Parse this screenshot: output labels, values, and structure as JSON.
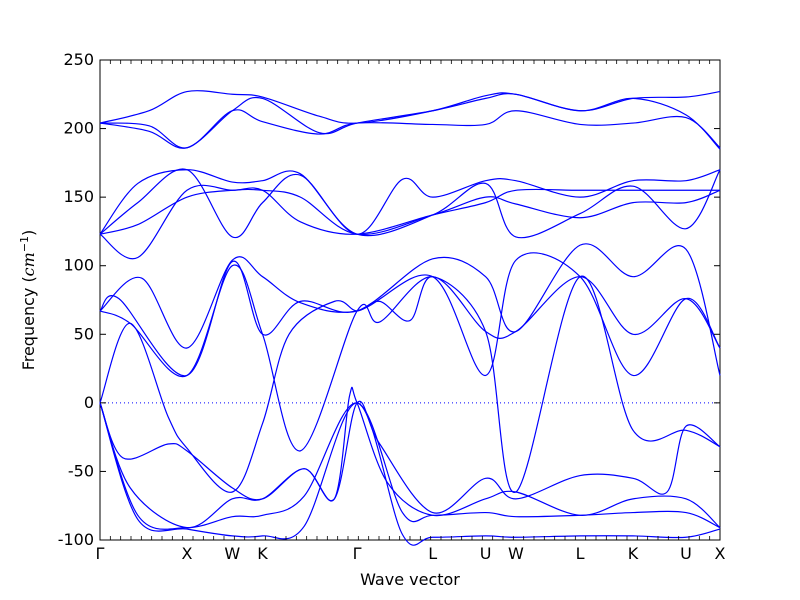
{
  "chart_data": {
    "type": "line",
    "title": "",
    "xlabel": "Wave vector",
    "ylabel": {
      "prefix": "Frequency (",
      "unit_base": "cm",
      "unit_exponent": "−1",
      "suffix": ")"
    },
    "ylim": [
      -100,
      250
    ],
    "xlim": [
      0,
      16.4
    ],
    "y_ticks": [
      -100,
      -50,
      0,
      50,
      100,
      150,
      200,
      250
    ],
    "x_ticks": [
      {
        "label": "Γ",
        "x": 0.0
      },
      {
        "label": "X",
        "x": 2.3
      },
      {
        "label": "W",
        "x": 3.5
      },
      {
        "label": "K",
        "x": 4.3
      },
      {
        "label": "Γ",
        "x": 6.8
      },
      {
        "label": "L",
        "x": 8.8
      },
      {
        "label": "U",
        "x": 10.2
      },
      {
        "label": "W",
        "x": 11.0
      },
      {
        "label": "L",
        "x": 12.7
      },
      {
        "label": "K",
        "x": 14.1
      },
      {
        "label": "U",
        "x": 15.5
      },
      {
        "label": "X",
        "x": 16.4
      }
    ],
    "zero_line": {
      "y": 0,
      "style": "dotted"
    },
    "grid": false,
    "legend": "none",
    "line_color": "#0000ff",
    "series": [
      {
        "x": [
          0.0,
          1.3,
          2.3,
          3.5,
          4.3,
          5.8,
          6.8,
          8.8,
          10.2,
          11.0,
          12.7,
          14.1,
          15.5,
          16.4
        ],
        "y": [
          204,
          213,
          227,
          225,
          223,
          209,
          204,
          213,
          224,
          225,
          213,
          222,
          223,
          227
        ]
      },
      {
        "x": [
          0.0,
          1.3,
          2.3,
          3.5,
          4.3,
          5.8,
          6.8,
          8.8,
          10.2,
          11.0,
          12.7,
          14.1,
          15.5,
          16.4
        ],
        "y": [
          204,
          198,
          186,
          213,
          222,
          197,
          204,
          213,
          222,
          225,
          213,
          222,
          210,
          185
        ]
      },
      {
        "x": [
          0.0,
          1.3,
          2.3,
          3.5,
          4.3,
          5.8,
          6.8,
          8.8,
          10.2,
          11.0,
          12.7,
          14.1,
          15.5,
          16.4
        ],
        "y": [
          204,
          202,
          186,
          213,
          205,
          196,
          204,
          203,
          203,
          213,
          203,
          204,
          208,
          186
        ]
      },
      {
        "x": [
          0.0,
          1.0,
          2.3,
          3.5,
          4.3,
          5.3,
          6.8,
          8.0,
          8.8,
          10.2,
          11.0,
          12.7,
          14.1,
          15.5,
          16.4
        ],
        "y": [
          123,
          160,
          170,
          161,
          162,
          167,
          123,
          163,
          150,
          162,
          162,
          150,
          162,
          162,
          170
        ]
      },
      {
        "x": [
          0.0,
          1.0,
          2.3,
          3.5,
          4.3,
          5.3,
          6.8,
          8.8,
          10.2,
          11.0,
          12.7,
          14.1,
          15.5,
          16.4
        ],
        "y": [
          123,
          146,
          170,
          121,
          146,
          166,
          123,
          137,
          160,
          121,
          138,
          158,
          127,
          170
        ]
      },
      {
        "x": [
          0.0,
          1.0,
          2.3,
          3.5,
          4.3,
          5.3,
          6.8,
          8.8,
          10.2,
          11.0,
          12.7,
          14.1,
          15.5,
          16.4
        ],
        "y": [
          123,
          106,
          155,
          155,
          155,
          132,
          123,
          137,
          146,
          155,
          155,
          155,
          155,
          155
        ]
      },
      {
        "x": [
          0.0,
          1.0,
          2.3,
          3.5,
          4.3,
          5.3,
          6.8,
          8.8,
          10.2,
          11.0,
          12.7,
          14.1,
          15.5,
          16.4
        ],
        "y": [
          123,
          130,
          150,
          155,
          155,
          150,
          123,
          137,
          150,
          145,
          135,
          146,
          146,
          155
        ]
      },
      {
        "x": [
          0.0,
          1.1,
          2.3,
          3.5,
          4.3,
          5.3,
          6.8,
          8.8,
          10.2,
          11.0,
          12.7,
          14.1,
          15.5,
          16.4
        ],
        "y": [
          67,
          91,
          40,
          104,
          92,
          73,
          67,
          92,
          20,
          104,
          92,
          20,
          76,
          40
        ]
      },
      {
        "x": [
          0.0,
          0.5,
          2.3,
          3.5,
          4.3,
          5.3,
          6.8,
          8.8,
          10.2,
          11.0,
          12.7,
          14.1,
          15.5,
          16.4
        ],
        "y": [
          67,
          76,
          20,
          103,
          50,
          74,
          67,
          105,
          92,
          52,
          115,
          92,
          112,
          20
        ]
      },
      {
        "x": [
          0.0,
          0.8,
          2.3,
          3.5,
          4.3,
          5.3,
          6.8,
          7.4,
          8.8,
          10.2,
          11.0,
          12.7,
          14.1,
          15.5,
          16.4
        ],
        "y": [
          67,
          58,
          20,
          100,
          50,
          -35,
          67,
          59,
          92,
          52,
          52,
          92,
          50,
          76,
          40
        ]
      },
      {
        "x": [
          0.0,
          0.8,
          1.8,
          2.3,
          3.5,
          4.3,
          5.0,
          6.2,
          6.8,
          7.4,
          8.2,
          8.8,
          10.2,
          11.0,
          12.7,
          14.1,
          15.5,
          16.4
        ],
        "y": [
          0,
          58,
          -10,
          -33,
          -65,
          -15,
          50,
          74,
          67,
          74,
          60,
          92,
          52,
          -65,
          92,
          -20,
          -20,
          -32
        ]
      },
      {
        "x": [
          0.0,
          0.6,
          1.8,
          2.3,
          3.5,
          4.3,
          5.4,
          6.2,
          6.8,
          7.4,
          8.8,
          10.2,
          11.0,
          12.7,
          14.1,
          15.0,
          15.5,
          16.4
        ],
        "y": [
          0,
          -40,
          -30,
          -35,
          -62,
          -70,
          -48,
          -70,
          0,
          -30,
          -80,
          -55,
          -70,
          -53,
          -55,
          -65,
          -17,
          -32
        ]
      },
      {
        "x": [
          0.0,
          0.8,
          2.3,
          3.5,
          4.3,
          5.4,
          6.2,
          6.6,
          6.8,
          7.6,
          8.8,
          10.2,
          11.0,
          12.7,
          14.1,
          15.5,
          16.4
        ],
        "y": [
          0,
          -62,
          -91,
          -70,
          -70,
          -48,
          -70,
          5,
          0,
          -58,
          -82,
          -70,
          -65,
          -82,
          -70,
          -70,
          -91
        ]
      },
      {
        "x": [
          0.0,
          1.0,
          2.3,
          3.5,
          4.3,
          5.4,
          6.8,
          8.0,
          8.8,
          10.2,
          11.0,
          12.7,
          14.1,
          15.5,
          16.4
        ],
        "y": [
          0,
          -82,
          -91,
          -83,
          -82,
          -68,
          0,
          -80,
          -82,
          -80,
          -83,
          -82,
          -80,
          -80,
          -91
        ]
      },
      {
        "x": [
          0.0,
          1.0,
          2.3,
          3.5,
          4.3,
          5.4,
          6.8,
          8.0,
          8.8,
          10.2,
          11.0,
          12.7,
          14.1,
          15.5,
          16.4
        ],
        "y": [
          0,
          -85,
          -92,
          -97,
          -97,
          -90,
          0,
          -96,
          -98,
          -97,
          -98,
          -97,
          -97,
          -98,
          -92
        ]
      }
    ]
  }
}
